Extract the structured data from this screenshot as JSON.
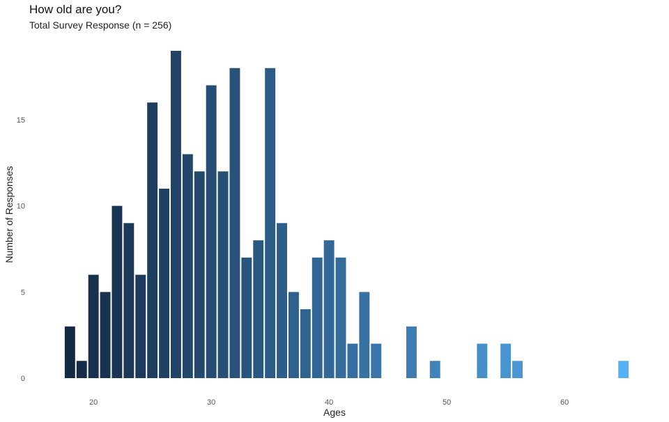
{
  "chart_data": {
    "type": "bar",
    "title": "How old are you?",
    "subtitle": "Total Survey Response (n = 256)",
    "xlabel": "Ages",
    "ylabel": "Number of Responses",
    "x": [
      18,
      19,
      20,
      21,
      22,
      23,
      24,
      25,
      26,
      27,
      28,
      29,
      30,
      31,
      32,
      33,
      34,
      35,
      36,
      37,
      38,
      39,
      40,
      41,
      42,
      43,
      44,
      47,
      49,
      53,
      55,
      56,
      65
    ],
    "values": [
      3,
      1,
      6,
      5,
      10,
      9,
      6,
      16,
      11,
      19,
      13,
      12,
      17,
      12,
      18,
      7,
      8,
      18,
      9,
      5,
      4,
      7,
      8,
      7,
      2,
      5,
      2,
      3,
      1,
      2,
      2,
      1,
      1
    ],
    "xlim": [
      16.5,
      66.5
    ],
    "ylim": [
      0,
      19
    ],
    "xticks": [
      20,
      30,
      40,
      50,
      60
    ],
    "yticks": [
      0,
      5,
      10,
      15
    ],
    "grid": false,
    "color_low": "#142a44",
    "color_high": "#56b1f7"
  }
}
